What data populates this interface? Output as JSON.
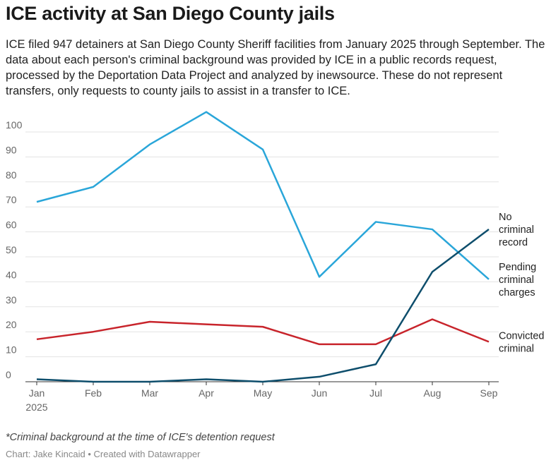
{
  "title": "ICE activity at San Diego County jails",
  "subtitle": "ICE filed 947 detainers at San Diego County Sheriff facilities from January 2025 through September. The data about each person's criminal background was provided by ICE in a public records request, processed by the Deportation Data Project and analyzed by inewsource. These do not represent transfers, only requests to county jails to assist in a transfer to ICE.",
  "note": "*Criminal background at the time of ICE's detention request",
  "credit": "Chart: Jake Kincaid • Created with Datawrapper",
  "chart_data": {
    "type": "line",
    "categories": [
      "Jan",
      "Feb",
      "Mar",
      "Apr",
      "May",
      "Jun",
      "Jul",
      "Aug",
      "Sep"
    ],
    "first_category_sublabel": "2025",
    "ylim": [
      0,
      100
    ],
    "yticks": [
      0,
      10,
      20,
      30,
      40,
      50,
      60,
      70,
      80,
      90,
      100
    ],
    "grid": true,
    "legend": "direct labels at right",
    "series": [
      {
        "name": "Pending criminal charges",
        "label_lines": [
          "Pending",
          "criminal",
          "charges"
        ],
        "color": "#2aa6d9",
        "values": [
          72,
          78,
          95,
          108,
          93,
          42,
          64,
          61,
          41
        ]
      },
      {
        "name": "Convicted criminal",
        "label_lines": [
          "Convicted",
          "criminal"
        ],
        "color": "#c8242b",
        "values": [
          17,
          20,
          24,
          23,
          22,
          15,
          15,
          25,
          16
        ]
      },
      {
        "name": "No criminal record",
        "label_lines": [
          "No",
          "criminal",
          "record"
        ],
        "color": "#0e4e6c",
        "values": [
          1,
          0,
          0,
          1,
          0,
          2,
          7,
          44,
          61
        ]
      }
    ]
  }
}
